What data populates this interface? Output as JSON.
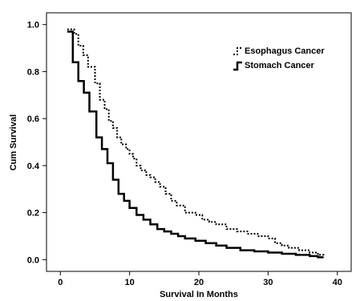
{
  "chart_data": {
    "type": "line",
    "subtype": "kaplan-meier-step",
    "title": "",
    "xlabel": "Survival In Months",
    "ylabel": "Cum Survival",
    "xlim": [
      -2,
      42
    ],
    "ylim": [
      -0.05,
      1.05
    ],
    "x_ticks": [
      0,
      10,
      20,
      30,
      40
    ],
    "y_ticks": [
      0.0,
      0.2,
      0.4,
      0.6,
      0.8,
      1.0
    ],
    "x_tick_labels": [
      "0",
      "10",
      "20",
      "30",
      "40"
    ],
    "y_tick_labels": [
      "0.0",
      "0.2",
      "0.4",
      "0.6",
      "0.8",
      "1.0"
    ],
    "grid": false,
    "legend_position": "top-right",
    "series": [
      {
        "name": "Esophagus Cancer",
        "line_style": "dotted",
        "color": "#000000",
        "x": [
          1.0,
          2.0,
          2.6,
          3.3,
          4.0,
          5.0,
          5.7,
          6.4,
          7.0,
          7.6,
          8.2,
          8.8,
          9.5,
          10.0,
          10.5,
          11.0,
          11.6,
          12.4,
          13.0,
          13.7,
          14.4,
          15.2,
          16.0,
          16.8,
          18.0,
          19.5,
          20.5,
          21.5,
          22.5,
          24.0,
          25.5,
          27.0,
          28.5,
          30.0,
          31.0,
          32.0,
          33.0,
          34.5,
          36.0,
          37.2,
          38.0
        ],
        "y": [
          0.98,
          0.96,
          0.91,
          0.87,
          0.82,
          0.75,
          0.68,
          0.64,
          0.59,
          0.56,
          0.52,
          0.49,
          0.47,
          0.45,
          0.43,
          0.4,
          0.38,
          0.36,
          0.35,
          0.33,
          0.31,
          0.28,
          0.25,
          0.23,
          0.2,
          0.19,
          0.17,
          0.16,
          0.15,
          0.13,
          0.12,
          0.11,
          0.1,
          0.09,
          0.07,
          0.06,
          0.05,
          0.04,
          0.03,
          0.02,
          0.01
        ]
      },
      {
        "name": "Stomach Cancer",
        "line_style": "solid",
        "color": "#000000",
        "x": [
          1.0,
          1.8,
          2.6,
          3.4,
          4.2,
          5.2,
          6.0,
          6.8,
          7.6,
          8.4,
          9.2,
          10.0,
          11.0,
          12.0,
          13.0,
          14.0,
          15.0,
          16.0,
          17.0,
          18.0,
          19.5,
          21.0,
          22.5,
          24.0,
          26.0,
          28.0,
          30.0,
          32.0,
          34.0,
          36.0,
          37.2,
          38.0
        ],
        "y": [
          0.97,
          0.84,
          0.76,
          0.71,
          0.63,
          0.52,
          0.47,
          0.41,
          0.34,
          0.28,
          0.25,
          0.22,
          0.19,
          0.17,
          0.15,
          0.13,
          0.12,
          0.11,
          0.1,
          0.09,
          0.08,
          0.07,
          0.06,
          0.05,
          0.04,
          0.035,
          0.03,
          0.025,
          0.02,
          0.015,
          0.01,
          0.01
        ]
      }
    ]
  }
}
